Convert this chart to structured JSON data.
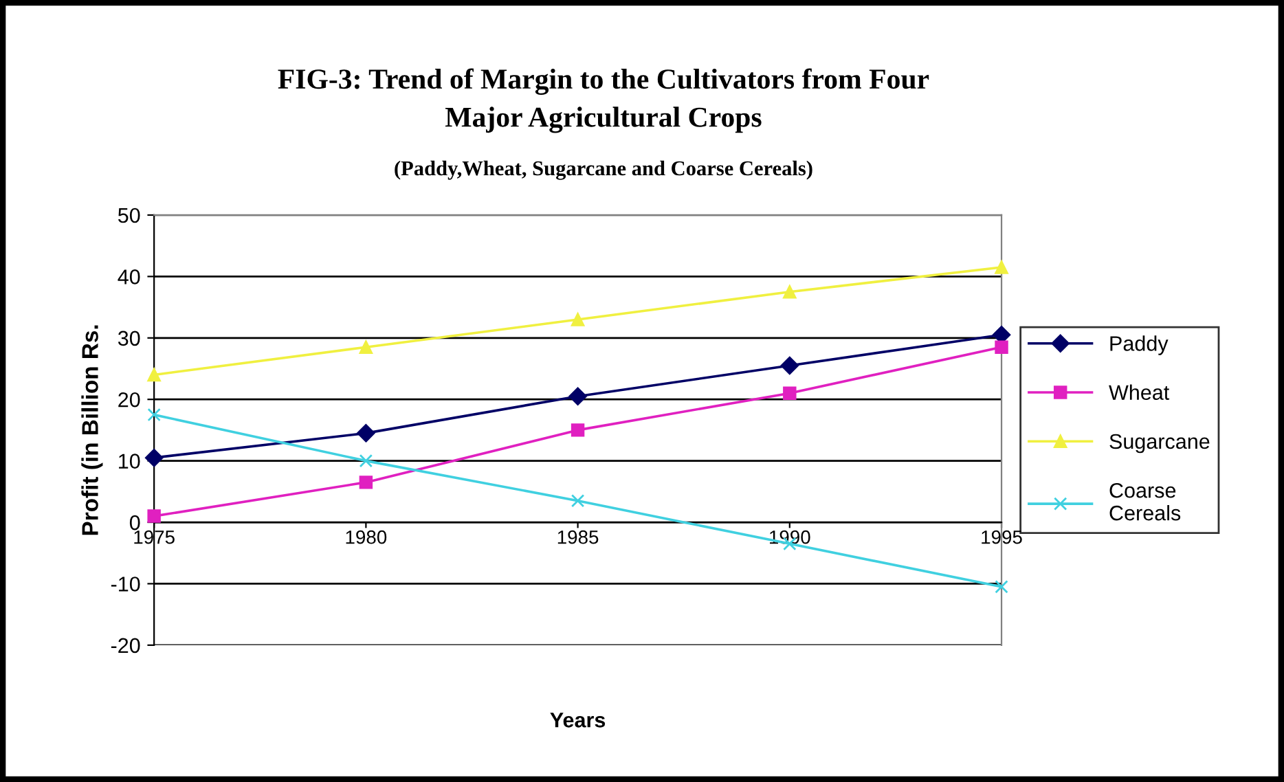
{
  "chart_data": {
    "type": "line",
    "title": "FIG-3: Trend of Margin to the Cultivators from Four\nMajor Agricultural Crops",
    "subtitle": "(Paddy,Wheat, Sugarcane and Coarse Cereals)",
    "xlabel": "Years",
    "ylabel": "Profit (in Billion Rs.",
    "categories": [
      "1975",
      "1980",
      "1985",
      "1990",
      "1995"
    ],
    "series": [
      {
        "name": "Paddy",
        "color": "#000066",
        "marker": "diamond",
        "values": [
          10.5,
          14.5,
          20.5,
          25.5,
          30.5
        ]
      },
      {
        "name": "Wheat",
        "color": "#e020c0",
        "marker": "square",
        "values": [
          1,
          6.5,
          15,
          21,
          28.5
        ]
      },
      {
        "name": "Sugarcane",
        "color": "#f0f040",
        "marker": "triangle",
        "values": [
          24,
          28.5,
          33,
          37.5,
          41.5
        ]
      },
      {
        "name": "Coarse\nCereals",
        "color": "#40d0e0",
        "marker": "cross",
        "values": [
          17.5,
          10,
          3.5,
          -3.5,
          -10.5
        ]
      }
    ],
    "ylim": [
      -20,
      50
    ],
    "yticks": [
      -20,
      -10,
      0,
      10,
      20,
      30,
      40,
      50
    ],
    "grid": "y",
    "legend": "right",
    "line_style": "solid"
  }
}
